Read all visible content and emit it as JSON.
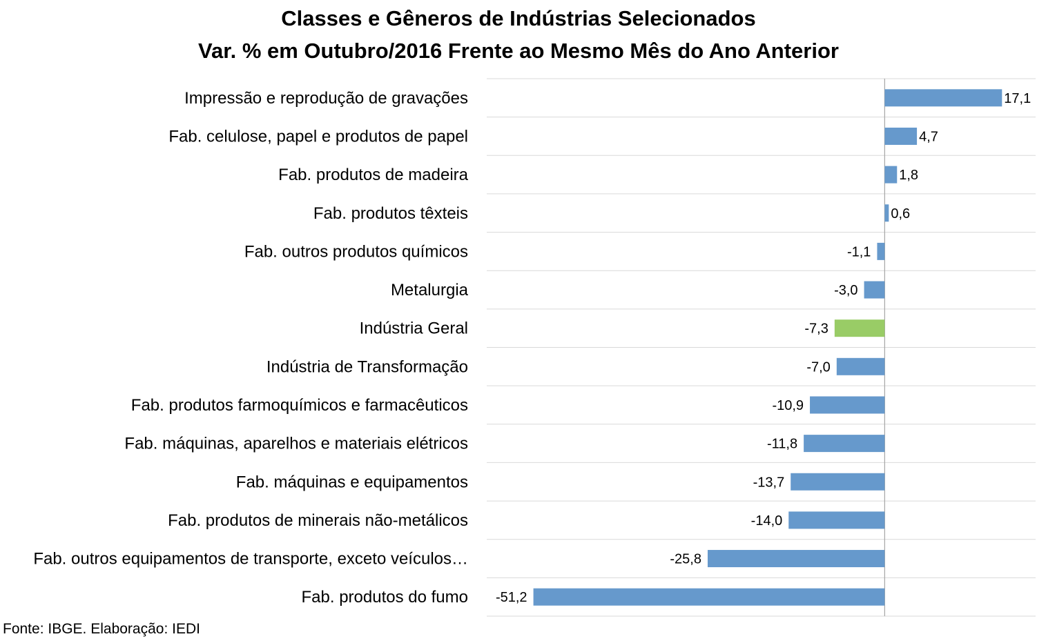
{
  "chart_data": {
    "type": "bar",
    "orientation": "horizontal",
    "title": "Classes e Gêneros de Indústrias Selecionados",
    "subtitle": "Var. % em Outubro/2016 Frente ao Mesmo Mês do Ano Anterior",
    "categories": [
      "Impressão e reprodução de gravações",
      "Fab. celulose, papel e produtos de papel",
      "Fab. produtos de madeira",
      "Fab. produtos têxteis",
      "Fab. outros produtos químicos",
      "Metalurgia",
      "Indústria Geral",
      "Indústria de Transformação",
      "Fab. produtos farmoquímicos e farmacêuticos",
      "Fab. máquinas, aparelhos e materiais elétricos",
      "Fab. máquinas e equipamentos",
      "Fab. produtos de minerais não-metálicos",
      "Fab. outros equipamentos de transporte, exceto veículos…",
      "Fab. produtos do fumo"
    ],
    "values": [
      17.1,
      4.7,
      1.8,
      0.6,
      -1.1,
      -3.0,
      -7.3,
      -7.0,
      -10.9,
      -11.8,
      -13.7,
      -14.0,
      -25.8,
      -51.2
    ],
    "data_labels": [
      "17,1",
      "4,7",
      "1,8",
      "0,6",
      "-1,1",
      "-3,0",
      "-7,3",
      "-7,0",
      "-10,9",
      "-11,8",
      "-13,7",
      "-14,0",
      "-25,8",
      "-51,2"
    ],
    "highlight_category": "Indústria Geral",
    "colors": {
      "default": "#6699CC",
      "highlight": "#99CC66",
      "gridline": "#D9D9D9",
      "axis": "#A6A6A6"
    },
    "xlim": [
      -58,
      22
    ],
    "grid": true,
    "legend": "none"
  },
  "source": "Fonte: IBGE. Elaboração: IEDI"
}
